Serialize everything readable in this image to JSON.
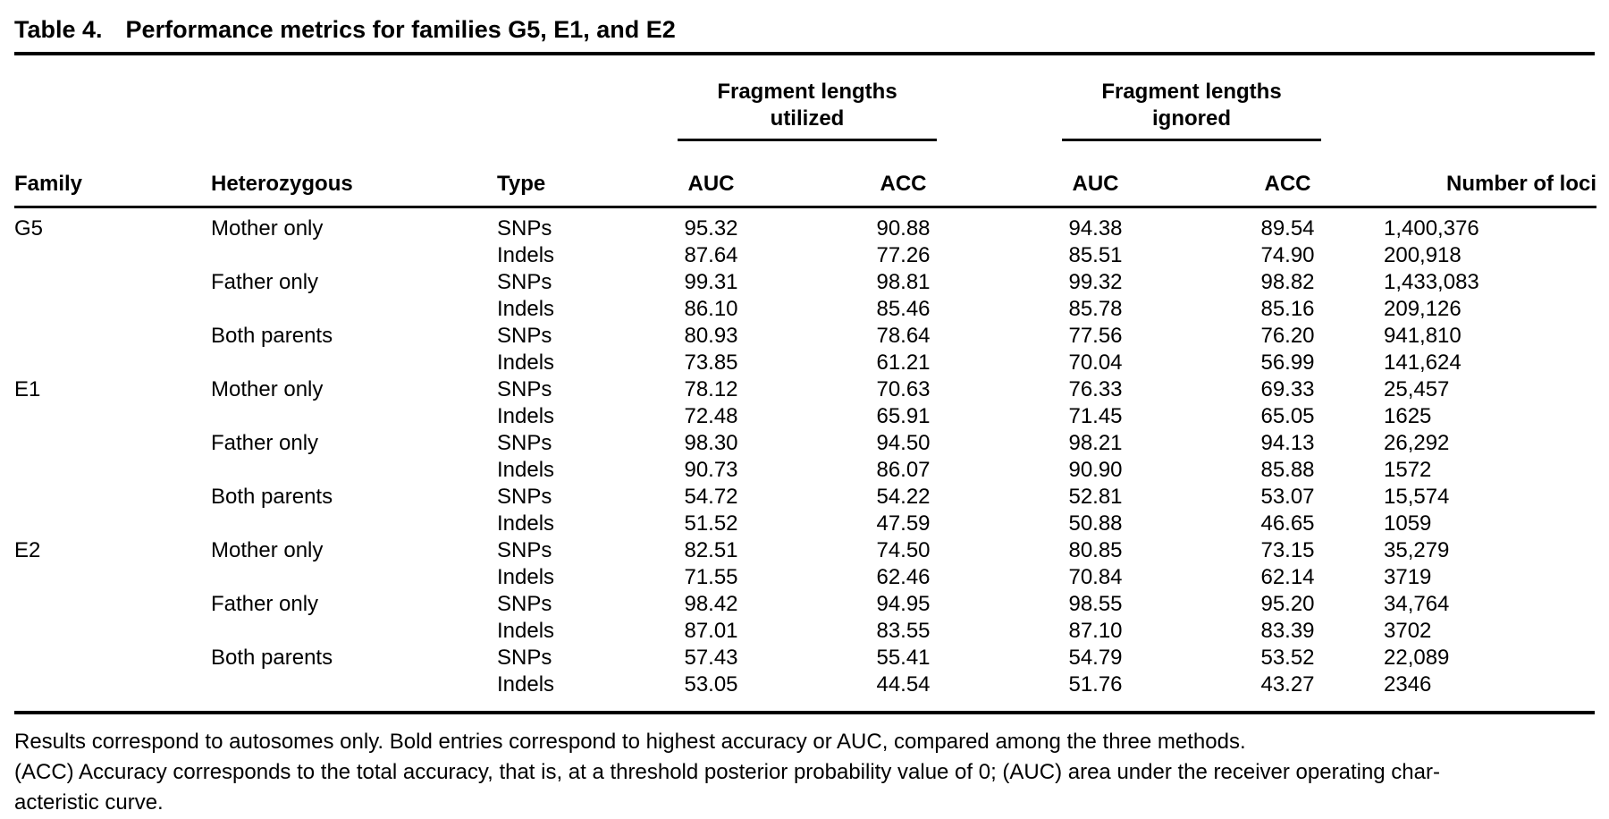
{
  "page": {
    "background": "#ffffff",
    "text_color": "#000000"
  },
  "table": {
    "title_label": "Table 4.",
    "title": "Performance metrics for families G5, E1, and E2",
    "spanners": [
      {
        "label": "Fragment lengths\nutilized"
      },
      {
        "label": "Fragment lengths\nignored"
      }
    ],
    "columns": [
      "Family",
      "Heterozygous",
      "Type",
      "AUC",
      "ACC",
      "AUC",
      "ACC",
      "Number of loci"
    ],
    "rows": [
      {
        "family": "G5",
        "heterozygous": "Mother only",
        "type": "SNPs",
        "values": [
          "95.32",
          "90.88",
          "94.38",
          "89.54"
        ],
        "bold": [
          true,
          true,
          false,
          false
        ],
        "loci": "1,400,376"
      },
      {
        "family": "",
        "heterozygous": "",
        "type": "Indels",
        "values": [
          "87.64",
          "77.26",
          "85.51",
          "74.90"
        ],
        "bold": [
          true,
          true,
          false,
          false
        ],
        "loci": "200,918"
      },
      {
        "family": "",
        "heterozygous": "Father only",
        "type": "SNPs",
        "values": [
          "99.31",
          "98.81",
          "99.32",
          "98.82"
        ],
        "bold": [
          false,
          false,
          true,
          true
        ],
        "loci": "1,433,083"
      },
      {
        "family": "",
        "heterozygous": "",
        "type": "Indels",
        "values": [
          "86.10",
          "85.46",
          "85.78",
          "85.16"
        ],
        "bold": [
          true,
          true,
          false,
          false
        ],
        "loci": "209,126"
      },
      {
        "family": "",
        "heterozygous": "Both parents",
        "type": "SNPs",
        "values": [
          "80.93",
          "78.64",
          "77.56",
          "76.20"
        ],
        "bold": [
          true,
          true,
          false,
          false
        ],
        "loci": "941,810"
      },
      {
        "family": "",
        "heterozygous": "",
        "type": "Indels",
        "values": [
          "73.85",
          "61.21",
          "70.04",
          "56.99"
        ],
        "bold": [
          true,
          true,
          false,
          false
        ],
        "loci": "141,624"
      },
      {
        "family": "E1",
        "heterozygous": "Mother only",
        "type": "SNPs",
        "values": [
          "78.12",
          "70.63",
          "76.33",
          "69.33"
        ],
        "bold": [
          true,
          true,
          false,
          false
        ],
        "loci": "25,457"
      },
      {
        "family": "",
        "heterozygous": "",
        "type": "Indels",
        "values": [
          "72.48",
          "65.91",
          "71.45",
          "65.05"
        ],
        "bold": [
          true,
          true,
          false,
          false
        ],
        "loci": "1625"
      },
      {
        "family": "",
        "heterozygous": "Father only",
        "type": "SNPs",
        "values": [
          "98.30",
          "94.50",
          "98.21",
          "94.13"
        ],
        "bold": [
          true,
          true,
          false,
          false
        ],
        "loci": "26,292"
      },
      {
        "family": "",
        "heterozygous": "",
        "type": "Indels",
        "values": [
          "90.73",
          "86.07",
          "90.90",
          "85.88"
        ],
        "bold": [
          false,
          true,
          true,
          false
        ],
        "loci": "1572"
      },
      {
        "family": "",
        "heterozygous": "Both parents",
        "type": "SNPs",
        "values": [
          "54.72",
          "54.22",
          "52.81",
          "53.07"
        ],
        "bold": [
          true,
          true,
          false,
          false
        ],
        "loci": "15,574"
      },
      {
        "family": "",
        "heterozygous": "",
        "type": "Indels",
        "values": [
          "51.52",
          "47.59",
          "50.88",
          "46.65"
        ],
        "bold": [
          true,
          true,
          false,
          false
        ],
        "loci": "1059"
      },
      {
        "family": "E2",
        "heterozygous": "Mother only",
        "type": "SNPs",
        "values": [
          "82.51",
          "74.50",
          "80.85",
          "73.15"
        ],
        "bold": [
          true,
          true,
          false,
          false
        ],
        "loci": "35,279"
      },
      {
        "family": "",
        "heterozygous": "",
        "type": "Indels",
        "values": [
          "71.55",
          "62.46",
          "70.84",
          "62.14"
        ],
        "bold": [
          true,
          true,
          false,
          false
        ],
        "loci": "3719"
      },
      {
        "family": "",
        "heterozygous": "Father only",
        "type": "SNPs",
        "values": [
          "98.42",
          "94.95",
          "98.55",
          "95.20"
        ],
        "bold": [
          false,
          false,
          true,
          true
        ],
        "loci": "34,764"
      },
      {
        "family": "",
        "heterozygous": "",
        "type": "Indels",
        "values": [
          "87.01",
          "83.55",
          "87.10",
          "83.39"
        ],
        "bold": [
          false,
          true,
          true,
          false
        ],
        "loci": "3702"
      },
      {
        "family": "",
        "heterozygous": "Both parents",
        "type": "SNPs",
        "values": [
          "57.43",
          "55.41",
          "54.79",
          "53.52"
        ],
        "bold": [
          true,
          true,
          false,
          false
        ],
        "loci": "22,089"
      },
      {
        "family": "",
        "heterozygous": "",
        "type": "Indels",
        "values": [
          "53.05",
          "44.54",
          "51.76",
          "43.27"
        ],
        "bold": [
          true,
          true,
          false,
          false
        ],
        "loci": "2346"
      }
    ],
    "footnotes": [
      "Results correspond to autosomes only. Bold entries correspond to highest accuracy or AUC, compared among the three methods.",
      "(ACC) Accuracy corresponds to the total accuracy, that is, at a threshold posterior probability value of 0; (AUC) area under the receiver operating char-",
      "acteristic curve."
    ]
  }
}
